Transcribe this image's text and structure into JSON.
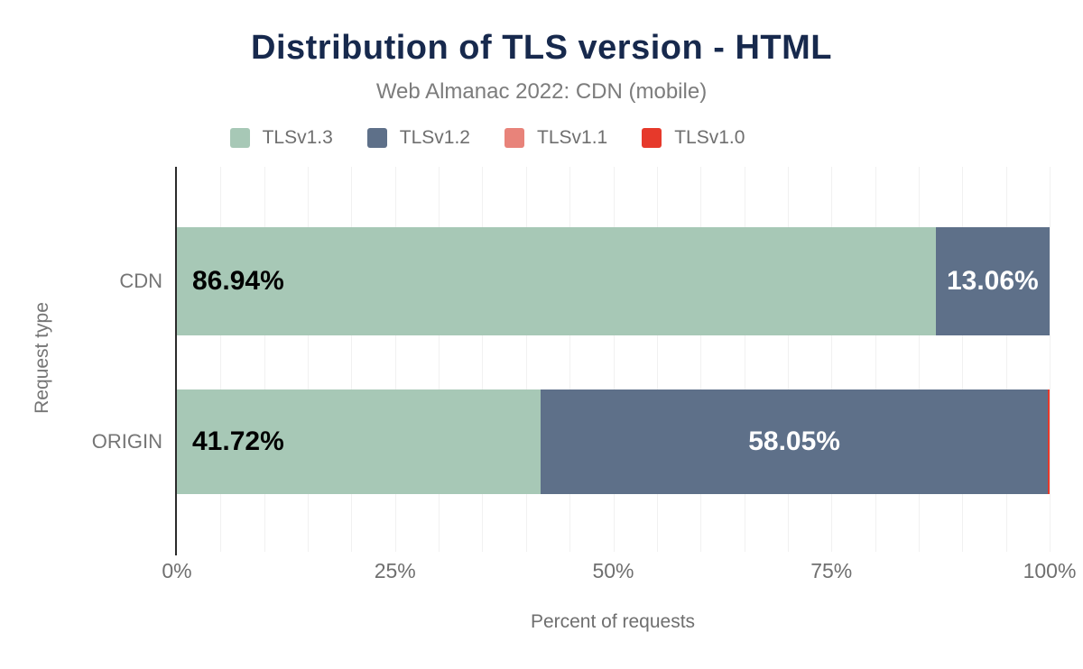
{
  "chart_data": {
    "type": "bar",
    "orientation": "horizontal",
    "stacked": true,
    "title": "Distribution of TLS version - HTML",
    "subtitle": "Web Almanac 2022: CDN (mobile)",
    "xlabel": "Percent of requests",
    "ylabel": "Request type",
    "xlim": [
      0,
      100
    ],
    "x_ticks": [
      {
        "label": "0%",
        "value": 0
      },
      {
        "label": "25%",
        "value": 25
      },
      {
        "label": "50%",
        "value": 50
      },
      {
        "label": "75%",
        "value": 75
      },
      {
        "label": "100%",
        "value": 100
      }
    ],
    "categories": [
      "CDN",
      "ORIGIN"
    ],
    "series": [
      {
        "name": "TLSv1.3",
        "color": "#a7c8b6",
        "values": [
          86.94,
          41.72
        ],
        "labels": [
          "86.94%",
          "41.72%"
        ],
        "label_color": "#000000"
      },
      {
        "name": "TLSv1.2",
        "color": "#5e7089",
        "values": [
          13.06,
          58.05
        ],
        "labels": [
          "13.06%",
          "58.05%"
        ],
        "label_color": "#ffffff"
      },
      {
        "name": "TLSv1.1",
        "color": "#e8837a",
        "values": [
          0,
          0
        ],
        "labels": [
          "",
          ""
        ],
        "label_color": "#ffffff"
      },
      {
        "name": "TLSv1.0",
        "color": "#e6392b",
        "values": [
          0,
          0.23
        ],
        "labels": [
          "",
          ""
        ],
        "label_color": "#ffffff"
      }
    ],
    "grid": {
      "vertical_step_percent": 5
    },
    "legend_position": "top"
  },
  "colors": {
    "background": "#ffffff",
    "title": "#17294d",
    "subtitle": "#7c7c7c",
    "axis_text": "#6f6f6f",
    "category_text": "#757575",
    "axis_line": "#2b2b2b",
    "grid": "#f1f1f1"
  }
}
